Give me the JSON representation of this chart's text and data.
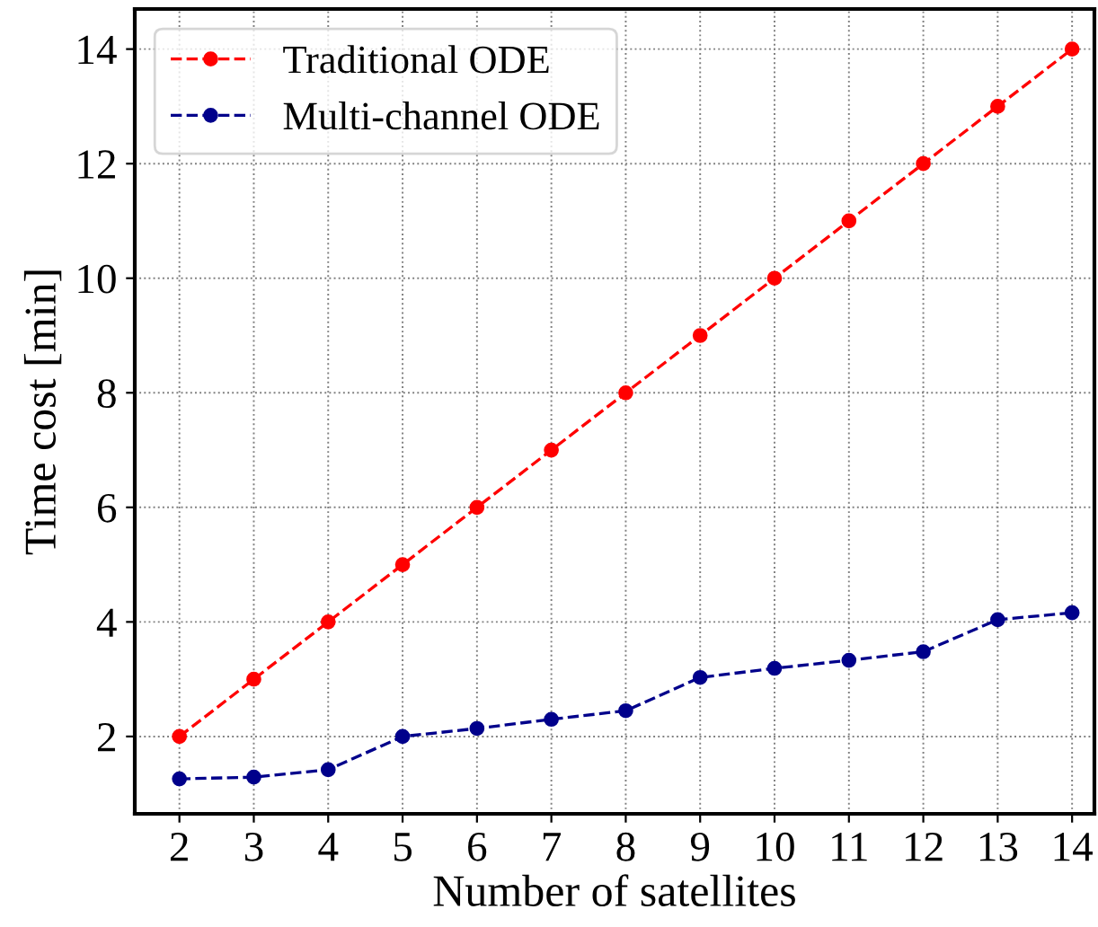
{
  "chart_data": {
    "type": "line",
    "xlabel": "Number of satellites",
    "ylabel": "Time cost [min]",
    "x": [
      2,
      3,
      4,
      5,
      6,
      7,
      8,
      9,
      10,
      11,
      12,
      13,
      14
    ],
    "series": [
      {
        "name": "Traditional ODE",
        "color": "#ff0000",
        "values": [
          2,
          3,
          4,
          5,
          6,
          7,
          8,
          9,
          10,
          11,
          12,
          13,
          14
        ]
      },
      {
        "name": "Multi-channel ODE",
        "color": "#00008b",
        "values": [
          1.26,
          1.29,
          1.42,
          2.0,
          2.14,
          2.3,
          2.45,
          3.03,
          3.19,
          3.33,
          3.48,
          4.04,
          4.16
        ]
      }
    ],
    "xlim": [
      1.4,
      14.3
    ],
    "xticks": [
      2,
      3,
      4,
      5,
      6,
      7,
      8,
      9,
      10,
      11,
      12,
      13,
      14
    ],
    "ylim": [
      0.65,
      14.7
    ],
    "yticks": [
      2,
      4,
      6,
      8,
      10,
      12,
      14
    ],
    "grid": true,
    "legend": "top left",
    "marker": "circle",
    "line_style": "dashed"
  }
}
